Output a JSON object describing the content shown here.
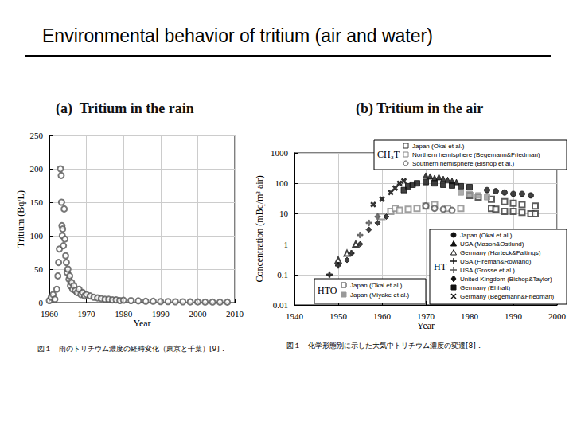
{
  "title": "Environmental behavior of tritium (air and water)",
  "chart_data": [
    {
      "type": "scatter",
      "title": "(a)  Tritium in the rain",
      "annotations": [
        "図１　雨のトリチウム濃度の経時変化（東京と千葉）[9]．"
      ],
      "x_label": "Year",
      "y_label": "Tritium (Bq/L)",
      "x": [
        1960,
        1960.5,
        1961,
        1961.5,
        1962,
        1962.3,
        1962.5,
        1962.7,
        1963,
        1963.2,
        1963.3,
        1963.4,
        1963.5,
        1963.6,
        1963.8,
        1964,
        1964.2,
        1964.4,
        1964.6,
        1964.8,
        1965,
        1965.3,
        1965.5,
        1965.7,
        1966,
        1966.3,
        1966.6,
        1967,
        1967.5,
        1968,
        1968.5,
        1969,
        1969.5,
        1970,
        1971,
        1972,
        1973,
        1974,
        1975,
        1976,
        1977,
        1978,
        1979,
        1980,
        1982,
        1984,
        1986,
        1988,
        1990,
        1992,
        1994,
        1996,
        1998,
        2000,
        2002,
        2004,
        2006,
        2008
      ],
      "values": [
        3,
        8,
        12,
        5,
        20,
        40,
        60,
        80,
        200,
        190,
        150,
        115,
        100,
        110,
        85,
        140,
        95,
        70,
        60,
        45,
        50,
        35,
        40,
        25,
        30,
        20,
        25,
        18,
        15,
        20,
        12,
        15,
        10,
        12,
        10,
        8,
        7,
        6,
        5,
        5,
        4,
        4,
        3,
        3.5,
        3,
        2.5,
        2,
        2,
        1.5,
        1.5,
        1.2,
        1.2,
        1,
        1,
        0.8,
        0.8,
        0.7,
        0.7
      ],
      "marker": "open_circle",
      "color": "#555555",
      "xlim": [
        1960,
        2010
      ],
      "xticks": [
        1960,
        1970,
        1980,
        1990,
        2000,
        2010
      ],
      "ylim": [
        0,
        250
      ],
      "yticks": [
        0,
        50,
        100,
        150,
        200,
        250
      ],
      "grid": true
    },
    {
      "type": "scatter",
      "title": "(b) Tritium in the air",
      "annotations": [
        "図１　化学形態別に示した大気中トリチウム濃度の変遷[8]．"
      ],
      "x_label": "Year",
      "y_label": "Concentration (mBq/m³ air)",
      "log": "y",
      "xlim": [
        1940,
        2000
      ],
      "xticks": [
        1940,
        1950,
        1960,
        1970,
        1980,
        1990,
        2000
      ],
      "ylim": [
        0.01,
        1000
      ],
      "yticks": [
        0.01,
        0.1,
        1,
        10,
        100,
        1000
      ],
      "grid": true,
      "groups": [
        {
          "label": "CH₃T",
          "series": [
            {
              "name": "Japan (Okai et al.)",
              "marker": "open_square",
              "color": "#333333",
              "x": [
                1985,
                1986,
                1988,
                1990,
                1992,
                1994,
                1995
              ],
              "values": [
                15,
                14,
                12,
                12,
                11,
                10,
                10
              ]
            },
            {
              "name": "Northern hemisphere (Begemann&Friedman)",
              "marker": "open_square",
              "color": "#888888",
              "x": [
                1960,
                1962,
                1963,
                1964,
                1966,
                1968,
                1970,
                1972,
                1975,
                1978
              ],
              "values": [
                8,
                12,
                15,
                13,
                14,
                15,
                18,
                20,
                15,
                15
              ]
            },
            {
              "name": "Southern hemisphere (Bishop et al.)",
              "marker": "open_circle",
              "color": "#555555",
              "x": [
                1970,
                1972,
                1974,
                1976
              ],
              "values": [
                18,
                15,
                14,
                13
              ]
            }
          ]
        },
        {
          "label": "HT",
          "series": [
            {
              "name": "Japan (Okai et al.)",
              "marker": "circle",
              "color": "#111111",
              "x": [
                1984,
                1986,
                1988,
                1990,
                1992,
                1994
              ],
              "values": [
                60,
                55,
                50,
                45,
                45,
                40
              ]
            },
            {
              "name": "USA (Mason&Ostlund)",
              "marker": "triangle",
              "color": "#111111",
              "x": [
                1970,
                1971,
                1972,
                1973,
                1974,
                1975,
                1976,
                1977
              ],
              "values": [
                180,
                170,
                150,
                160,
                140,
                130,
                120,
                110
              ]
            },
            {
              "name": "Germany (Harteck&Faltings)",
              "marker": "open_triangle",
              "color": "#111111",
              "x": [
                1950,
                1952,
                1954
              ],
              "values": [
                0.3,
                0.5,
                1
              ]
            },
            {
              "name": "USA (Fireman&Rowland)",
              "marker": "plus",
              "color": "#111111",
              "x": [
                1948,
                1950,
                1953
              ],
              "values": [
                0.1,
                0.2,
                0.5
              ]
            },
            {
              "name": "USA (Grosse et al.)",
              "marker": "plus",
              "color": "#555555",
              "x": [
                1955,
                1957,
                1959
              ],
              "values": [
                2,
                5,
                8
              ]
            },
            {
              "name": "United Kingdom (Bishop&Taylor)",
              "marker": "diamond",
              "color": "#111111",
              "x": [
                1952,
                1955,
                1957,
                1959,
                1961
              ],
              "values": [
                0.3,
                1,
                3,
                5,
                8
              ]
            },
            {
              "name": "Germany (Ehhalt)",
              "marker": "square",
              "color": "#111111",
              "x": [
                1965,
                1966,
                1967,
                1968,
                1970,
                1972,
                1974,
                1976,
                1978,
                1980
              ],
              "values": [
                60,
                80,
                90,
                100,
                110,
                100,
                90,
                85,
                80,
                75
              ]
            },
            {
              "name": "Germany (Begemann&Friedman)",
              "marker": "cross",
              "color": "#111111",
              "x": [
                1958,
                1960,
                1962,
                1963,
                1964,
                1965
              ],
              "values": [
                20,
                30,
                50,
                70,
                100,
                120
              ]
            }
          ]
        },
        {
          "label": "HTO",
          "series": [
            {
              "name": "Japan (Okai et al.)",
              "marker": "open_square",
              "color": "#333333",
              "x": [
                1980,
                1982,
                1985,
                1988,
                1990,
                1992,
                1995
              ],
              "values": [
                40,
                35,
                30,
                25,
                22,
                20,
                18
              ]
            },
            {
              "name": "Japan (Miyake et al.)",
              "marker": "square",
              "color": "#999999",
              "x": [
                1978,
                1980,
                1982,
                1984
              ],
              "values": [
                50,
                45,
                40,
                35
              ]
            }
          ]
        }
      ]
    }
  ]
}
